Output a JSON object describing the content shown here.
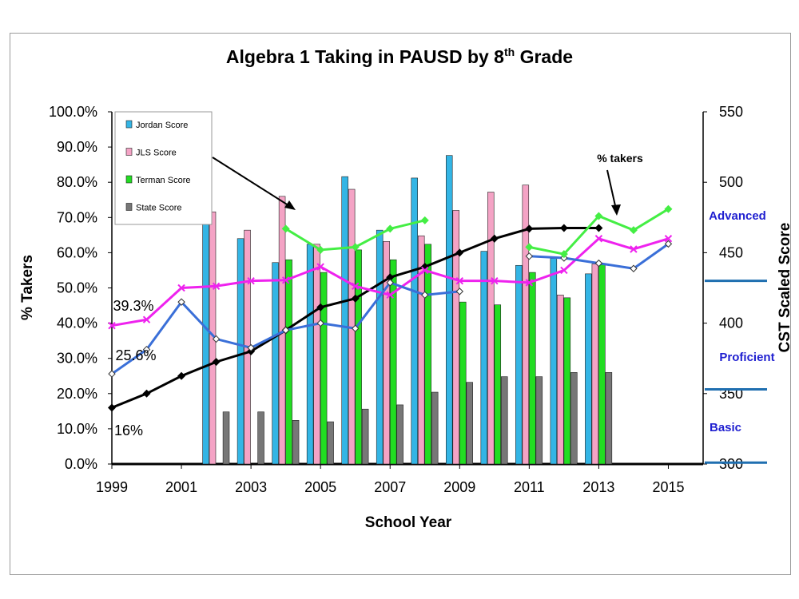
{
  "chart_data": {
    "type": "bar",
    "title_main": "Algebra 1 Taking in PAUSD by 8",
    "title_sup": "th",
    "title_end": " Grade",
    "xlabel": "School Year",
    "ylabel_left": "% Takers",
    "ylabel_right": "CST Scaled Score",
    "x_ticks": [
      "1999",
      "2001",
      "2003",
      "2005",
      "2007",
      "2009",
      "2011",
      "2013",
      "2015"
    ],
    "y_left_ticks": [
      "0.0%",
      "10.0%",
      "20.0%",
      "30.0%",
      "40.0%",
      "50.0%",
      "60.0%",
      "70.0%",
      "80.0%",
      "90.0%",
      "100.0%"
    ],
    "y_right_ticks": [
      "300",
      "350",
      "400",
      "450",
      "500",
      "550"
    ],
    "ylim_left": [
      0,
      100
    ],
    "ylim_right": [
      300,
      550
    ],
    "grid": false,
    "legend_position": "top-left",
    "years": [
      1999,
      2000,
      2001,
      2002,
      2003,
      2004,
      2005,
      2006,
      2007,
      2008,
      2009,
      2010,
      2011,
      2012,
      2013,
      2014,
      2015
    ],
    "bar_series": [
      {
        "name": "Jordan Score",
        "color": "#33b5e5",
        "axis": "right",
        "values": [
          null,
          null,
          null,
          480,
          460,
          443,
          456,
          504,
          466,
          503,
          519,
          451,
          441,
          446,
          435,
          null,
          null
        ]
      },
      {
        "name": "JLS Score",
        "color": "#f4a3c5",
        "axis": "right",
        "values": [
          null,
          null,
          null,
          479,
          466,
          490,
          456,
          495,
          458,
          462,
          480,
          493,
          498,
          420,
          442,
          null,
          null
        ]
      },
      {
        "name": "Terman Score",
        "color": "#22dd22",
        "axis": "right",
        "values": [
          null,
          null,
          null,
          null,
          null,
          445,
          436,
          452,
          445,
          456,
          415,
          413,
          436,
          418,
          442,
          null,
          null
        ]
      },
      {
        "name": "State Score",
        "color": "#777777",
        "axis": "right",
        "values": [
          null,
          null,
          null,
          337,
          337,
          331,
          330,
          339,
          342,
          351,
          358,
          362,
          362,
          365,
          365,
          null,
          null
        ]
      }
    ],
    "line_series": [
      {
        "color": "#000000",
        "axis": "left",
        "marker": "diamond",
        "values": [
          16,
          20,
          25,
          29,
          32,
          38,
          44.5,
          47,
          53,
          56,
          60,
          64,
          66.8,
          67,
          67,
          null,
          null
        ]
      },
      {
        "color": "#ee22ee",
        "axis": "left",
        "marker": "cross",
        "values": [
          39.3,
          41,
          50,
          50.5,
          52,
          52.2,
          56,
          50.5,
          48,
          55,
          52,
          52,
          51.5,
          55,
          64,
          61,
          64
        ]
      },
      {
        "color": "#3a6fd8",
        "axis": "left",
        "marker": "hollow-diamond",
        "values": [
          25.6,
          32.5,
          46,
          35.5,
          33,
          38,
          40,
          38.5,
          51.5,
          48,
          49,
          null,
          59,
          58.5,
          57,
          55.5,
          62.5
        ]
      },
      {
        "color": "#44ee44",
        "axis": "right",
        "marker": "diamond",
        "connect_gaps": false,
        "values": [
          null,
          null,
          null,
          null,
          null,
          467,
          452,
          454,
          467,
          473,
          null,
          null,
          454,
          449,
          476,
          466,
          481
        ]
      }
    ],
    "band_labels": [
      "Advanced",
      "Proficient",
      "Basic"
    ],
    "band_thresholds": [
      430,
      353,
      301
    ],
    "annotations": {
      "takers": "% takers",
      "v1": "39.3%",
      "v2": "25.6%",
      "v3": "16%"
    }
  }
}
